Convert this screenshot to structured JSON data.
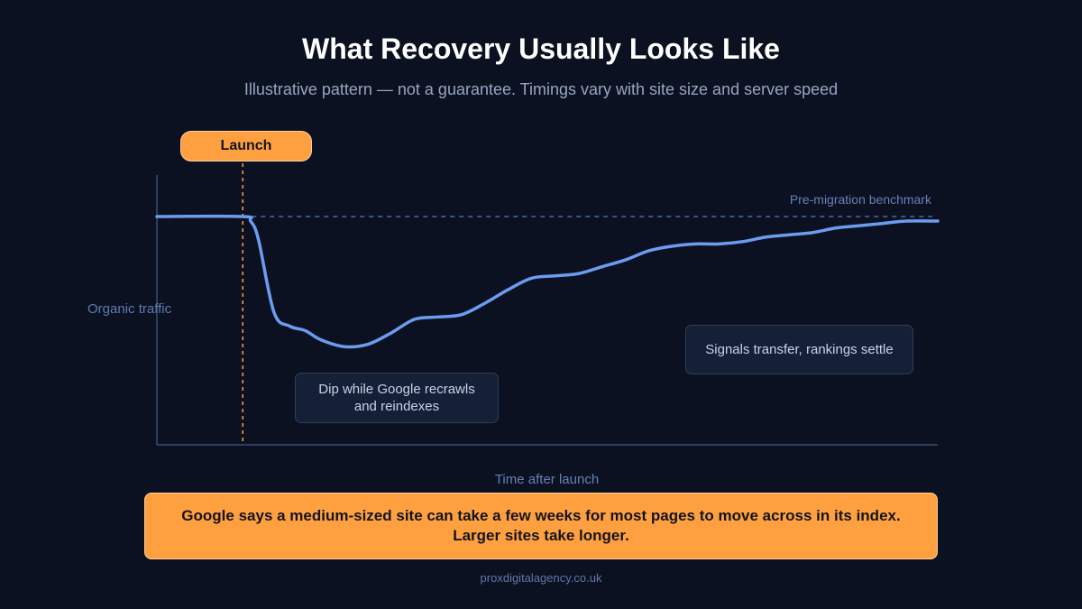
{
  "header": {
    "title": "What Recovery Usually Looks Like",
    "subtitle": "Illustrative pattern — not a guarantee. Timings vary with site size and server speed"
  },
  "chart_data": {
    "type": "line",
    "xlabel": "Time after launch",
    "ylabel": "Organic traffic",
    "launch_label": "Launch",
    "benchmark_label": "Pre-migration benchmark",
    "annotations": [
      "Dip while Google recrawls\nand reindexes",
      "Signals transfer, rankings settle"
    ],
    "grid": false,
    "series": [
      {
        "color": "#6b9cf0",
        "points": [
          [
            0,
            100
          ],
          [
            11,
            100
          ],
          [
            12,
            98
          ],
          [
            13,
            90
          ],
          [
            15,
            58
          ],
          [
            17,
            52
          ],
          [
            19,
            50
          ],
          [
            21,
            46
          ],
          [
            24,
            43
          ],
          [
            27,
            44
          ],
          [
            30,
            49
          ],
          [
            33,
            55
          ],
          [
            36,
            56
          ],
          [
            39,
            57
          ],
          [
            42,
            62
          ],
          [
            45,
            68
          ],
          [
            48,
            73
          ],
          [
            51,
            74
          ],
          [
            54,
            75
          ],
          [
            57,
            78
          ],
          [
            60,
            81
          ],
          [
            63,
            85
          ],
          [
            66,
            87
          ],
          [
            69,
            88
          ],
          [
            72,
            88
          ],
          [
            75,
            89
          ],
          [
            78,
            91
          ],
          [
            81,
            92
          ],
          [
            84,
            93
          ],
          [
            87,
            95
          ],
          [
            90,
            96
          ],
          [
            93,
            97
          ],
          [
            96,
            98
          ],
          [
            100,
            98
          ]
        ]
      }
    ],
    "benchmark_value": 100,
    "launch_x": 11,
    "colors": {
      "line": "#6b9cf0",
      "benchmark": "#4a6aa6",
      "launch_marker": "#ffa040",
      "axis": "#2e3e5e"
    }
  },
  "note": {
    "text": "Google says a medium-sized site can take a few weeks for most pages to move across in its index. Larger sites take longer."
  },
  "footer": {
    "text": "proxdigitalagency.co.uk"
  }
}
